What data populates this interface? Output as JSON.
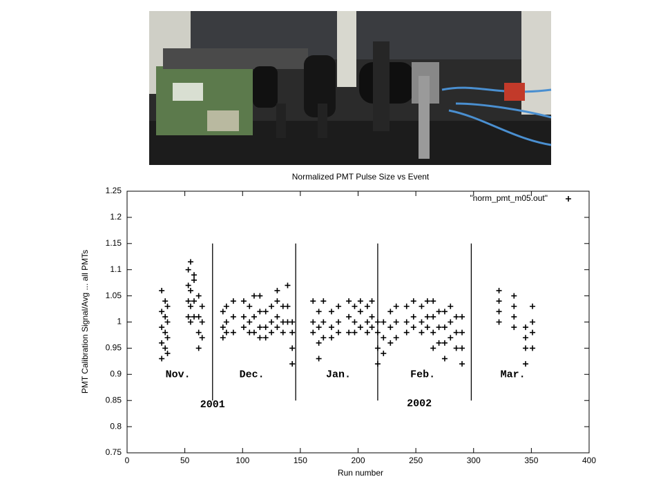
{
  "chart_data": {
    "type": "scatter",
    "title": "Normalized PMT Pulse Size vs Event",
    "x_label": "Run number",
    "y_label": "PMT Calibration Signal/Avg ... all PMTs",
    "xlim": [
      0,
      400
    ],
    "ylim": [
      0.75,
      1.25
    ],
    "xticks": [
      0,
      50,
      100,
      150,
      200,
      250,
      300,
      350,
      400
    ],
    "yticks": [
      0.75,
      0.8,
      0.85,
      0.9,
      0.95,
      1,
      1.05,
      1.1,
      1.15,
      1.2,
      1.25
    ],
    "grid": false,
    "legend": "upper right",
    "marker": "+",
    "series": [
      {
        "name": "\"norm_pmt_m05.out\"",
        "color": "#000000",
        "x": [
          30,
          30,
          30,
          30,
          30,
          33,
          33,
          33,
          33,
          35,
          35,
          35,
          35,
          53,
          53,
          53,
          53,
          55,
          55,
          55,
          55,
          58,
          58,
          58,
          58,
          62,
          62,
          62,
          62,
          65,
          65,
          65,
          83,
          83,
          83,
          86,
          86,
          86,
          92,
          92,
          92,
          101,
          101,
          101,
          106,
          106,
          106,
          110,
          110,
          110,
          115,
          115,
          115,
          115,
          120,
          120,
          120,
          125,
          125,
          125,
          130,
          130,
          130,
          130,
          135,
          135,
          135,
          139,
          139,
          139,
          143,
          143,
          143,
          143,
          161,
          161,
          161,
          166,
          166,
          166,
          166,
          170,
          170,
          170,
          177,
          177,
          177,
          183,
          183,
          183,
          192,
          192,
          192,
          197,
          197,
          197,
          202,
          202,
          202,
          208,
          208,
          208,
          212,
          212,
          212,
          217,
          217,
          217,
          217,
          222,
          222,
          222,
          228,
          228,
          228,
          233,
          233,
          233,
          242,
          242,
          242,
          248,
          248,
          248,
          255,
          255,
          255,
          260,
          260,
          260,
          265,
          265,
          265,
          265,
          270,
          270,
          270,
          275,
          275,
          275,
          275,
          280,
          280,
          280,
          285,
          285,
          285,
          290,
          290,
          290,
          290,
          322,
          322,
          322,
          322,
          335,
          335,
          335,
          335,
          345,
          345,
          345,
          345,
          351,
          351,
          351,
          351
        ],
        "y": [
          0.93,
          0.96,
          0.99,
          1.02,
          1.06,
          0.95,
          0.98,
          1.01,
          1.04,
          0.94,
          0.97,
          1.0,
          1.03,
          1.01,
          1.04,
          1.07,
          1.1,
          1.0,
          1.03,
          1.06,
          1.115,
          1.01,
          1.04,
          1.08,
          1.09,
          0.95,
          0.98,
          1.01,
          1.05,
          0.97,
          1.0,
          1.03,
          0.97,
          0.99,
          1.02,
          0.98,
          1.0,
          1.03,
          0.98,
          1.01,
          1.04,
          0.99,
          1.01,
          1.04,
          0.98,
          1.0,
          1.03,
          0.98,
          1.01,
          1.05,
          0.97,
          0.99,
          1.02,
          1.05,
          0.97,
          0.99,
          1.02,
          0.98,
          1.0,
          1.03,
          0.99,
          1.01,
          1.04,
          1.06,
          0.98,
          1.0,
          1.03,
          1.0,
          1.03,
          1.07,
          0.92,
          0.95,
          0.98,
          1.0,
          0.98,
          1.0,
          1.04,
          0.93,
          0.96,
          0.99,
          1.02,
          0.97,
          1.0,
          1.04,
          0.97,
          0.99,
          1.02,
          0.98,
          1.0,
          1.03,
          0.98,
          1.01,
          1.04,
          0.98,
          1.0,
          1.03,
          0.99,
          1.02,
          1.04,
          0.98,
          1.0,
          1.03,
          0.99,
          1.01,
          1.04,
          0.92,
          0.95,
          0.98,
          1.0,
          0.94,
          0.97,
          1.0,
          0.96,
          0.99,
          1.02,
          0.97,
          1.0,
          1.03,
          0.98,
          1.0,
          1.03,
          0.99,
          1.01,
          1.04,
          0.98,
          1.0,
          1.03,
          0.99,
          1.01,
          1.04,
          0.95,
          0.98,
          1.01,
          1.04,
          0.96,
          0.99,
          1.02,
          0.93,
          0.96,
          0.99,
          1.02,
          0.97,
          1.0,
          1.03,
          0.95,
          0.98,
          1.01,
          0.92,
          0.95,
          0.98,
          1.01,
          1.0,
          1.02,
          1.04,
          1.06,
          0.99,
          1.01,
          1.03,
          1.05,
          0.92,
          0.95,
          0.97,
          0.99,
          0.95,
          0.98,
          1.0,
          1.03
        ]
      }
    ],
    "dividers": {
      "x": [
        74,
        146,
        217,
        298
      ],
      "span": [
        0.85,
        1.15
      ]
    },
    "annotations": [
      {
        "text": "Nov.",
        "x": 44,
        "y": 0.9
      },
      {
        "text": "Dec.",
        "x": 108,
        "y": 0.9
      },
      {
        "text": "Jan.",
        "x": 183,
        "y": 0.9
      },
      {
        "text": "Feb.",
        "x": 256,
        "y": 0.9
      },
      {
        "text": "Mar.",
        "x": 334,
        "y": 0.9
      },
      {
        "text": "2001",
        "x": 74,
        "y": 0.842
      },
      {
        "text": "2002",
        "x": 253,
        "y": 0.844
      }
    ]
  }
}
